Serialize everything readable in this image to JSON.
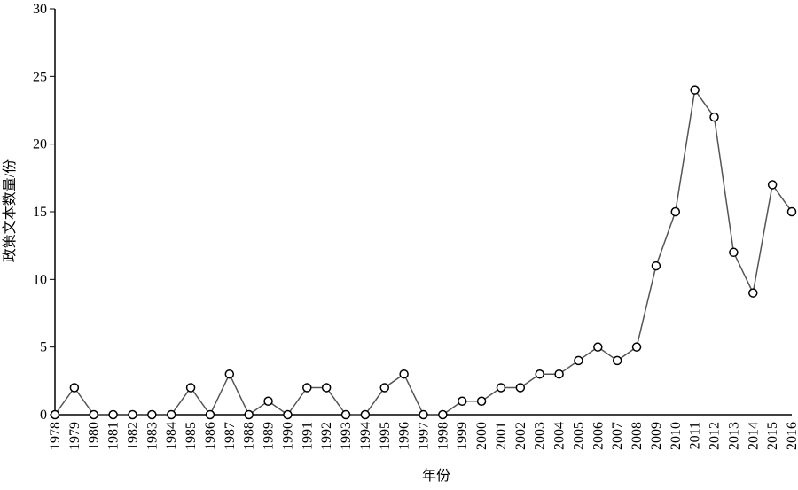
{
  "chart_data": {
    "type": "line",
    "x_label": "年份",
    "y_label": "政策文本数量/份",
    "categories": [
      "1978",
      "1979",
      "1980",
      "1981",
      "1982",
      "1983",
      "1984",
      "1985",
      "1986",
      "1987",
      "1988",
      "1989",
      "1990",
      "1991",
      "1992",
      "1993",
      "1994",
      "1995",
      "1996",
      "1997",
      "1998",
      "1999",
      "2000",
      "2001",
      "2002",
      "2003",
      "2004",
      "2005",
      "2006",
      "2007",
      "2008",
      "2009",
      "2010",
      "2011",
      "2012",
      "2013",
      "2014",
      "2015",
      "2016"
    ],
    "values": [
      0,
      2,
      0,
      0,
      0,
      0,
      0,
      2,
      0,
      3,
      0,
      1,
      0,
      2,
      2,
      0,
      0,
      2,
      3,
      0,
      0,
      1,
      1,
      2,
      2,
      3,
      3,
      4,
      5,
      4,
      5,
      11,
      15,
      24,
      22,
      12,
      9,
      17,
      15
    ],
    "color": "#555555",
    "ylim": [
      0,
      30
    ],
    "yticks": [
      0,
      5,
      10,
      15,
      20,
      25,
      30
    ],
    "grid": false
  }
}
